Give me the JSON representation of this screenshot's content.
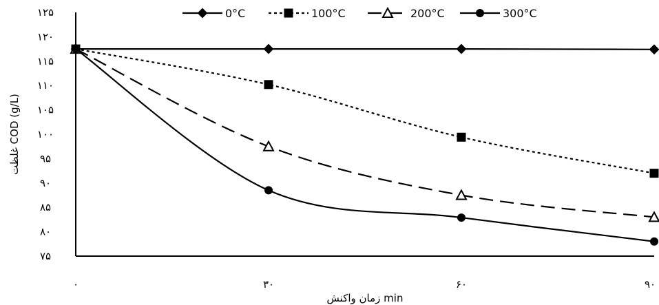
{
  "chart_data": {
    "type": "line",
    "title": "",
    "xlabel": "زمان واکنش min",
    "ylabel": "غلظت COD (g/L)",
    "x": [
      0,
      30,
      60,
      90
    ],
    "x_tick_labels": [
      "۰",
      "۳۰",
      "۶۰",
      "۹۰"
    ],
    "ylim": [
      75,
      125
    ],
    "y_ticks": [
      75,
      80,
      85,
      90,
      95,
      100,
      105,
      110,
      115,
      120,
      125
    ],
    "y_tick_labels": [
      "۷۵",
      "۸۰",
      "۸۵",
      "۹۰",
      "۹۵",
      "۱۰۰",
      "۱۰۵",
      "۱۱۰",
      "۱۱۵",
      "۱۲۰",
      "۱۲۵"
    ],
    "grid": false,
    "legend_position": "top",
    "series": [
      {
        "name": "0°C",
        "values": [
          117.5,
          117.5,
          117.5,
          117.4
        ],
        "marker": "diamond",
        "line_style": "solid",
        "smooth": false,
        "color": "#000000"
      },
      {
        "name": "100°C",
        "values": [
          117.5,
          110.2,
          99.4,
          92.0
        ],
        "marker": "square",
        "line_style": "dotted",
        "smooth": true,
        "color": "#000000"
      },
      {
        "name": "200°C",
        "values": [
          117.5,
          97.5,
          87.5,
          83.0
        ],
        "marker": "triangle",
        "line_style": "dashed",
        "smooth": true,
        "color": "#000000"
      },
      {
        "name": "300°C",
        "values": [
          117.5,
          88.5,
          82.9,
          78.0
        ],
        "marker": "circle",
        "line_style": "solid",
        "smooth": true,
        "color": "#000000"
      }
    ]
  }
}
